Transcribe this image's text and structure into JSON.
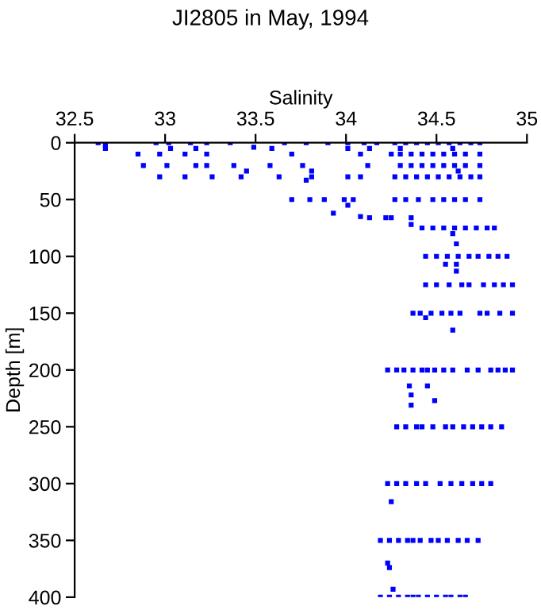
{
  "chart_data": {
    "type": "scatter",
    "title": "JI2805 in May, 1994",
    "xlabel": "Salinity",
    "ylabel": "Depth [m]",
    "xlim": [
      32.5,
      35
    ],
    "xticks": [
      32.5,
      33,
      33.5,
      34,
      34.5,
      35
    ],
    "ylim": [
      400,
      0
    ],
    "yticks": [
      0,
      50,
      100,
      150,
      200,
      250,
      300,
      350,
      400
    ],
    "grid": false,
    "legend": false,
    "marker": "square",
    "series": [
      {
        "color": "#0000ff",
        "x": [
          32.63,
          32.67,
          32.95,
          33.02,
          33.14,
          33.23,
          33.36,
          33.66,
          33.78,
          33.9,
          34.01,
          34.1,
          34.17,
          34.27,
          34.33,
          34.39,
          34.45,
          34.51,
          34.57,
          34.63,
          34.69,
          34.74,
          32.67,
          33.03,
          33.17,
          33.49,
          33.59,
          34.01,
          34.13,
          34.3,
          34.59,
          32.85,
          32.97,
          33.11,
          33.23,
          33.7,
          34.08,
          34.25,
          34.3,
          34.36,
          34.42,
          34.48,
          34.54,
          34.6,
          34.66,
          34.74,
          32.88,
          33.01,
          33.17,
          33.23,
          33.38,
          33.58,
          33.76,
          34.12,
          34.3,
          34.36,
          34.42,
          34.48,
          34.54,
          34.6,
          34.66,
          34.74,
          33.45,
          33.81,
          34.62,
          32.97,
          33.11,
          33.26,
          33.42,
          33.63,
          33.81,
          34.01,
          34.08,
          34.27,
          34.33,
          34.39,
          34.45,
          34.51,
          34.57,
          34.63,
          34.69,
          34.74,
          33.78,
          33.7,
          33.8,
          33.88,
          33.99,
          34.04,
          34.27,
          34.33,
          34.4,
          34.48,
          34.54,
          34.6,
          34.66,
          34.74,
          34.01,
          33.93,
          34.08,
          34.13,
          34.22,
          34.25,
          34.36,
          34.36,
          34.42,
          34.48,
          34.54,
          34.6,
          34.66,
          34.72,
          34.78,
          34.82,
          34.59,
          34.61,
          34.44,
          34.5,
          34.56,
          34.62,
          34.68,
          34.73,
          34.79,
          34.84,
          34.89,
          34.55,
          34.61,
          34.61,
          34.44,
          34.5,
          34.57,
          34.64,
          34.68,
          34.76,
          34.82,
          34.87,
          34.92,
          34.37,
          34.41,
          34.47,
          34.53,
          34.58,
          34.63,
          34.74,
          34.78,
          34.85,
          34.92,
          34.44,
          34.59,
          34.23,
          34.28,
          34.32,
          34.37,
          34.42,
          34.45,
          34.49,
          34.54,
          34.59,
          34.67,
          34.73,
          34.8,
          34.84,
          34.88,
          34.92,
          34.35,
          34.45,
          34.36,
          34.49,
          34.36,
          34.28,
          34.33,
          34.39,
          34.42,
          34.48,
          34.55,
          34.59,
          34.65,
          34.7,
          34.75,
          34.8,
          34.86,
          34.23,
          34.28,
          34.33,
          34.39,
          34.44,
          34.52,
          34.58,
          34.64,
          34.7,
          34.75,
          34.8,
          34.25,
          34.19,
          34.24,
          34.29,
          34.34,
          34.37,
          34.41,
          34.47,
          34.51,
          34.56,
          34.62,
          34.67,
          34.73,
          34.23,
          34.24,
          34.26,
          34.19,
          34.24,
          34.29,
          34.34,
          34.37,
          34.4,
          34.45,
          34.5,
          34.55,
          34.58,
          34.63,
          34.66
        ],
        "values": [
          0,
          2,
          0,
          0,
          0,
          0,
          0,
          0,
          0,
          0,
          0,
          0,
          0,
          0,
          0,
          0,
          0,
          0,
          0,
          0,
          0,
          0,
          5,
          5,
          5,
          4,
          5,
          5,
          5,
          5,
          5,
          10,
          10,
          10,
          10,
          10,
          10,
          10,
          10,
          10,
          10,
          10,
          10,
          10,
          10,
          10,
          20,
          20,
          20,
          20,
          20,
          20,
          20,
          20,
          20,
          20,
          20,
          20,
          20,
          20,
          20,
          20,
          25,
          25,
          25,
          30,
          30,
          30,
          30,
          30,
          30,
          30,
          30,
          30,
          30,
          30,
          30,
          30,
          30,
          30,
          30,
          30,
          33,
          50,
          50,
          50,
          50,
          50,
          50,
          50,
          50,
          50,
          50,
          50,
          50,
          50,
          55,
          62,
          65,
          66,
          66,
          66,
          66,
          72,
          75,
          75,
          75,
          75,
          75,
          75,
          75,
          75,
          80,
          89,
          100,
          100,
          100,
          100,
          100,
          100,
          100,
          100,
          100,
          107,
          107,
          113,
          125,
          125,
          125,
          125,
          125,
          125,
          125,
          125,
          125,
          150,
          150,
          150,
          150,
          150,
          150,
          150,
          150,
          150,
          150,
          154,
          165,
          200,
          200,
          200,
          200,
          200,
          200,
          200,
          200,
          200,
          200,
          200,
          200,
          200,
          200,
          200,
          214,
          214,
          222,
          227,
          231,
          250,
          250,
          250,
          250,
          250,
          250,
          250,
          250,
          250,
          250,
          250,
          250,
          300,
          300,
          300,
          300,
          300,
          300,
          300,
          300,
          300,
          300,
          300,
          316,
          350,
          350,
          350,
          350,
          350,
          350,
          350,
          350,
          350,
          350,
          350,
          350,
          370,
          374,
          393,
          400,
          400,
          400,
          400,
          400,
          400,
          400,
          400,
          400,
          400,
          400,
          400
        ]
      }
    ]
  }
}
